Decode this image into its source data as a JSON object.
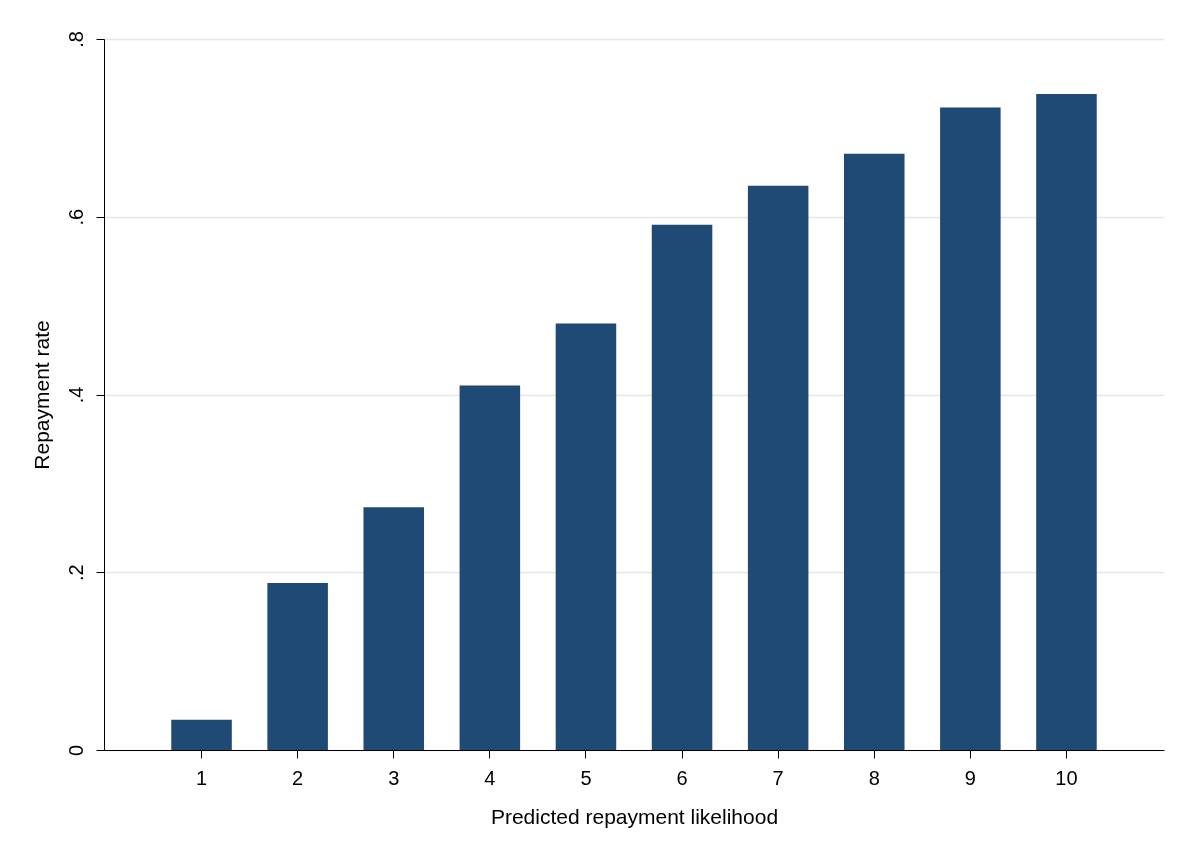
{
  "chart_data": {
    "type": "bar",
    "xlabel": "Predicted repayment likelihood",
    "ylabel": "Repayment rate",
    "categories": [
      "1",
      "2",
      "3",
      "4",
      "5",
      "6",
      "7",
      "8",
      "9",
      "10"
    ],
    "values": [
      0.034,
      0.188,
      0.273,
      0.41,
      0.48,
      0.591,
      0.635,
      0.671,
      0.723,
      0.738
    ],
    "color": "#1f4a75",
    "ylim": [
      0,
      0.8
    ],
    "yticks": [
      0,
      {
        "value": 0.2,
        "label": ".2"
      },
      {
        "value": 0.4,
        "label": ".4"
      },
      {
        "value": 0.6,
        "label": ".6"
      },
      {
        "value": 0.8,
        "label": ".8"
      }
    ],
    "grid": "y"
  }
}
